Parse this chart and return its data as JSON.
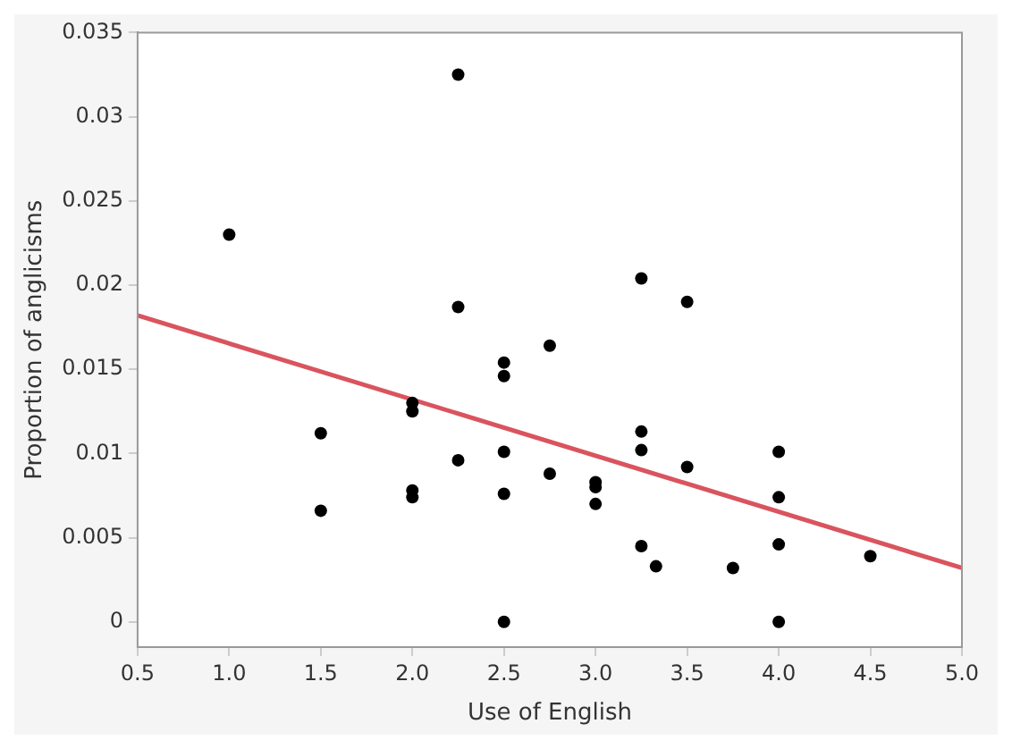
{
  "chart_data": {
    "type": "scatter",
    "xlabel": "Use of English",
    "ylabel": "Proportion of anglicisms",
    "xlim": [
      0.5,
      5.0
    ],
    "xticks": [
      {
        "value": 0.5,
        "label": "0.5"
      },
      {
        "value": 1,
        "label": "1.0"
      },
      {
        "value": 1.5,
        "label": "1.5"
      },
      {
        "value": 2,
        "label": "2.0"
      },
      {
        "value": 2.5,
        "label": "2.5"
      },
      {
        "value": 3,
        "label": "3.0"
      },
      {
        "value": 3.5,
        "label": "3.5"
      },
      {
        "value": 4,
        "label": "4.0"
      },
      {
        "value": 4.5,
        "label": "4.5"
      },
      {
        "value": 5,
        "label": "5.0"
      }
    ],
    "ylim": [
      -0.0015,
      0.035
    ],
    "yticks": [
      0,
      0.005,
      0.01,
      0.015,
      0.02,
      0.025,
      0.03,
      0.035
    ],
    "grid": false,
    "legend": false,
    "marker": "circle",
    "series": [
      {
        "color": "#000000",
        "x": [
          1.0,
          1.5,
          1.5,
          2.0,
          2.0,
          2.0,
          2.0,
          2.25,
          2.25,
          2.25,
          2.5,
          2.5,
          2.5,
          2.5,
          2.5,
          2.75,
          2.75,
          3.0,
          3.0,
          3.0,
          3.25,
          3.25,
          3.25,
          3.25,
          3.33,
          3.5,
          3.5,
          3.75,
          4.0,
          4.0,
          4.0,
          4.0,
          4.5
        ],
        "values": [
          0.023,
          0.0112,
          0.0066,
          0.013,
          0.0125,
          0.0078,
          0.0074,
          0.0325,
          0.0187,
          0.0096,
          0.0154,
          0.0146,
          0.0101,
          0.0076,
          0.0,
          0.0164,
          0.0088,
          0.0083,
          0.008,
          0.007,
          0.0204,
          0.0113,
          0.0102,
          0.0045,
          0.0033,
          0.019,
          0.0092,
          0.0032,
          0.0101,
          0.0074,
          0.0046,
          0.0,
          0.0039
        ]
      },
      {
        "type": "line",
        "color": "#d9545e",
        "x": [
          0.5,
          5.0
        ],
        "values": [
          0.0182,
          0.0032
        ],
        "marker": "none"
      }
    ]
  }
}
